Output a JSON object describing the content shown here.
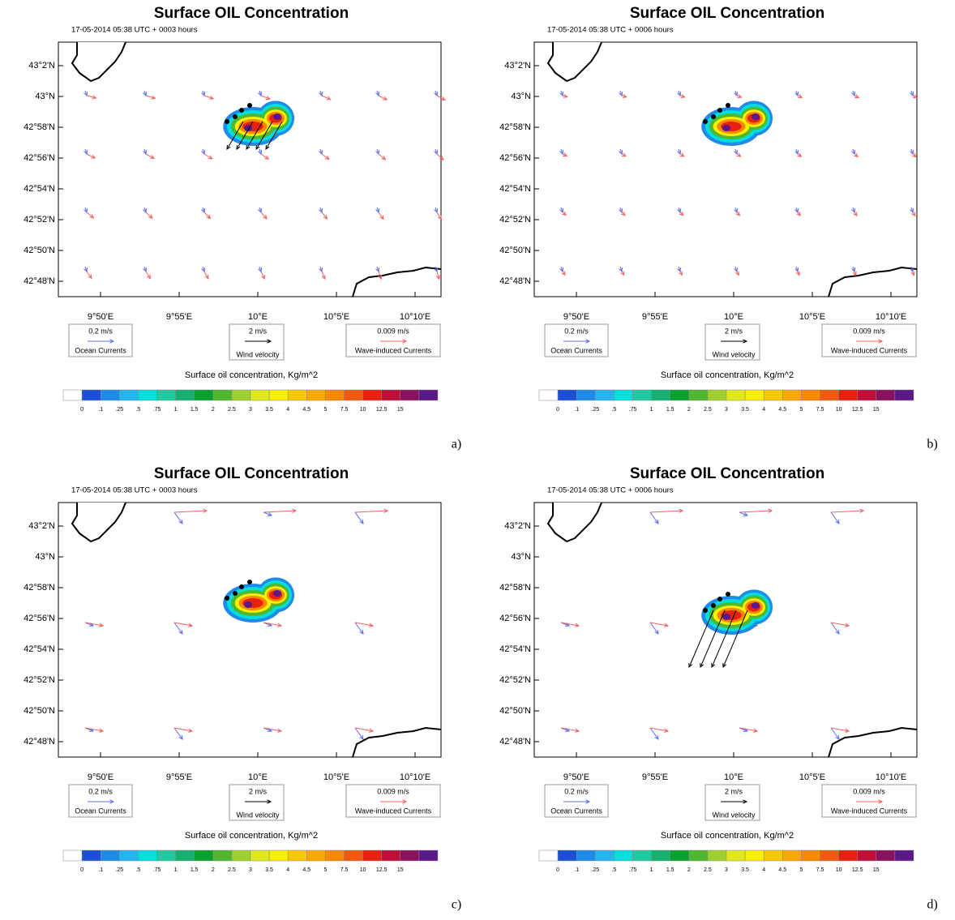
{
  "colorbar_colors": [
    "#ffffff",
    "#1a4fd6",
    "#1f8ae8",
    "#25b4f0",
    "#00dede",
    "#22c8a0",
    "#18b070",
    "#0aa030",
    "#50b830",
    "#a0d030",
    "#e0e820",
    "#f8f000",
    "#f8c800",
    "#f8a800",
    "#f88800",
    "#f05a10",
    "#e82010",
    "#c0103a",
    "#8a1060",
    "#5a1888"
  ],
  "panels": [
    {
      "title": "Surface OIL Concentration",
      "subtitle": "17-05-2014 05:38 UTC + 0003 hours",
      "label": "a)",
      "y_labels": [
        "43°2'N",
        "43°N",
        "42°58'N",
        "42°56'N",
        "42°54'N",
        "42°52'N",
        "42°50'N",
        "42°48'N"
      ],
      "x_labels": [
        "9°50'E",
        "9°55'E",
        "10°E",
        "10°5'E",
        "10°10'E"
      ],
      "legends": [
        {
          "value": "0.2 m/s",
          "name": "Ocean Currents",
          "color": "#5a6cf0"
        },
        {
          "value": "2 m/s",
          "name": "Wind velocity",
          "color": "#000000"
        },
        {
          "value": "0.009 m/s",
          "name": "Wave-induced Currents",
          "color": "#f06060"
        }
      ],
      "colorbar": {
        "title": "Surface oil concentration, Kg/m^2",
        "labels": [
          "0",
          ".1",
          ".25",
          ".5",
          ".75",
          "1",
          "1.5",
          "2",
          "2.5",
          "3",
          "3.5",
          "4",
          "4.5",
          "5",
          "7.5",
          "10",
          "12.5",
          "15"
        ]
      }
    },
    {
      "title": "Surface OIL Concentration",
      "subtitle": "17-05-2014 05:38 UTC + 0006 hours",
      "label": "b)",
      "y_labels": [
        "43°2'N",
        "43°N",
        "42°58'N",
        "42°56'N",
        "42°54'N",
        "42°52'N",
        "42°50'N",
        "42°48'N"
      ],
      "x_labels": [
        "9°50'E",
        "9°55'E",
        "10°E",
        "10°5'E",
        "10°10'E"
      ],
      "legends": [
        {
          "value": "0.2 m/s",
          "name": "Ocean Currents",
          "color": "#5a6cf0"
        },
        {
          "value": "2 m/s",
          "name": "Wind velocity",
          "color": "#000000"
        },
        {
          "value": "0.009 m/s",
          "name": "Wave-induced Currents",
          "color": "#f06060"
        }
      ],
      "colorbar": {
        "title": "Surface oil concentration, Kg/m^2",
        "labels": [
          "0",
          ".1",
          ".25",
          ".5",
          ".75",
          "1",
          "1.5",
          "2",
          "2.5",
          "3",
          "3.5",
          "4",
          "4.5",
          "5",
          "7.5",
          "10",
          "12.5",
          "15"
        ]
      }
    },
    {
      "title": "Surface OIL Concentration",
      "subtitle": "17-05-2014 05:38 UTC + 0003 hours",
      "label": "c)",
      "y_labels": [
        "43°2'N",
        "43°N",
        "42°58'N",
        "42°56'N",
        "42°54'N",
        "42°52'N",
        "42°50'N",
        "42°48'N"
      ],
      "x_labels": [
        "9°50'E",
        "9°55'E",
        "10°E",
        "10°5'E",
        "10°10'E"
      ],
      "legends": [
        {
          "value": "0.2 m/s",
          "name": "Ocean Currents",
          "color": "#5a6cf0"
        },
        {
          "value": "2 m/s",
          "name": "Wind velocity",
          "color": "#000000"
        },
        {
          "value": "0.009 m/s",
          "name": "Wave-induced Currents",
          "color": "#f06060"
        }
      ],
      "colorbar": {
        "title": "Surface oil concentration, Kg/m^2",
        "labels": [
          "0",
          ".1",
          ".25",
          ".5",
          ".75",
          "1",
          "1.5",
          "2",
          "2.5",
          "3",
          "3.5",
          "4",
          "4.5",
          "5",
          "7.5",
          "10",
          "12.5",
          "15"
        ]
      }
    },
    {
      "title": "Surface OIL Concentration",
      "subtitle": "17-05-2014 05:38 UTC + 0006 hours",
      "label": "d)",
      "y_labels": [
        "43°2'N",
        "43°N",
        "42°58'N",
        "42°56'N",
        "42°54'N",
        "42°52'N",
        "42°50'N",
        "42°48'N"
      ],
      "x_labels": [
        "9°50'E",
        "9°55'E",
        "10°E",
        "10°5'E",
        "10°10'E"
      ],
      "legends": [
        {
          "value": "0.2 m/s",
          "name": "Ocean Currents",
          "color": "#5a6cf0"
        },
        {
          "value": "2 m/s",
          "name": "Wind velocity",
          "color": "#000000"
        },
        {
          "value": "0.009 m/s",
          "name": "Wave-induced Currents",
          "color": "#f06060"
        }
      ],
      "colorbar": {
        "title": "Surface oil concentration, Kg/m^2",
        "labels": [
          "0",
          ".1",
          ".25",
          ".5",
          ".75",
          "1",
          "1.5",
          "2",
          "2.5",
          "3",
          "3.5",
          "4",
          "4.5",
          "5",
          "7.5",
          "10",
          "12.5",
          "15"
        ]
      }
    }
  ]
}
